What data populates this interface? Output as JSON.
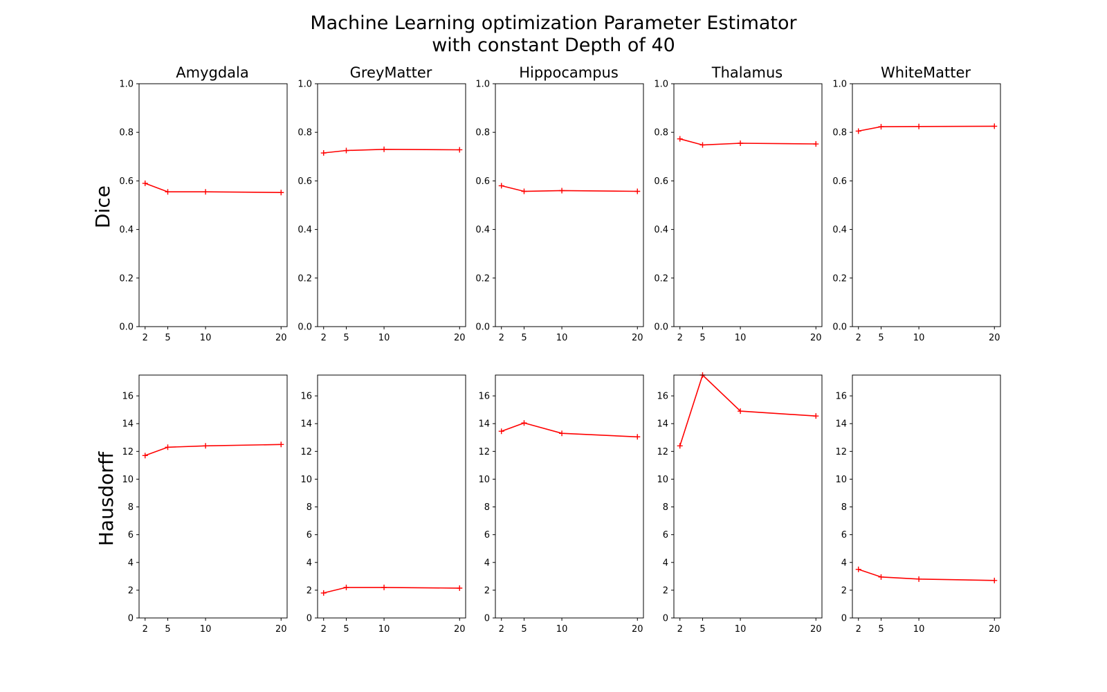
{
  "title_lines": [
    "Machine Learning optimization Parameter Estimator",
    "with constant Depth of 40"
  ],
  "columns": [
    "Amygdala",
    "GreyMatter",
    "Hippocampus",
    "Thalamus",
    "WhiteMatter"
  ],
  "rows": [
    "Dice",
    "Hausdorff"
  ],
  "colors": {
    "series": "#ff0000",
    "axes": "#000000"
  },
  "chart_data": [
    {
      "type": "line",
      "metric": "Dice",
      "x": [
        2,
        5,
        10,
        20
      ],
      "xticks": [
        2,
        5,
        10,
        20
      ],
      "xlim": [
        1.2,
        20.8
      ],
      "ylim": [
        0.0,
        1.0
      ],
      "yticks": [
        "0.0",
        "0.2",
        "0.4",
        "0.6",
        "0.8",
        "1.0"
      ],
      "grid": false,
      "series": [
        {
          "region": "Amygdala",
          "values": [
            0.59,
            0.555,
            0.555,
            0.552
          ]
        },
        {
          "region": "GreyMatter",
          "values": [
            0.715,
            0.725,
            0.73,
            0.728
          ]
        },
        {
          "region": "Hippocampus",
          "values": [
            0.58,
            0.557,
            0.56,
            0.557
          ]
        },
        {
          "region": "Thalamus",
          "values": [
            0.773,
            0.748,
            0.755,
            0.752
          ]
        },
        {
          "region": "WhiteMatter",
          "values": [
            0.805,
            0.823,
            0.824,
            0.825
          ]
        }
      ]
    },
    {
      "type": "line",
      "metric": "Hausdorff",
      "x": [
        2,
        5,
        10,
        20
      ],
      "xticks": [
        2,
        5,
        10,
        20
      ],
      "xlim": [
        1.2,
        20.8
      ],
      "ylim": [
        0,
        17.5
      ],
      "yticks": [
        "0",
        "2",
        "4",
        "6",
        "8",
        "10",
        "12",
        "14",
        "16"
      ],
      "grid": false,
      "series": [
        {
          "region": "Amygdala",
          "values": [
            11.7,
            12.3,
            12.4,
            12.5
          ]
        },
        {
          "region": "GreyMatter",
          "values": [
            1.8,
            2.2,
            2.2,
            2.15
          ]
        },
        {
          "region": "Hippocampus",
          "values": [
            13.45,
            14.05,
            13.3,
            13.05
          ]
        },
        {
          "region": "Thalamus",
          "values": [
            12.4,
            17.5,
            14.9,
            14.55
          ]
        },
        {
          "region": "WhiteMatter",
          "values": [
            3.5,
            2.95,
            2.8,
            2.7
          ]
        }
      ]
    }
  ]
}
